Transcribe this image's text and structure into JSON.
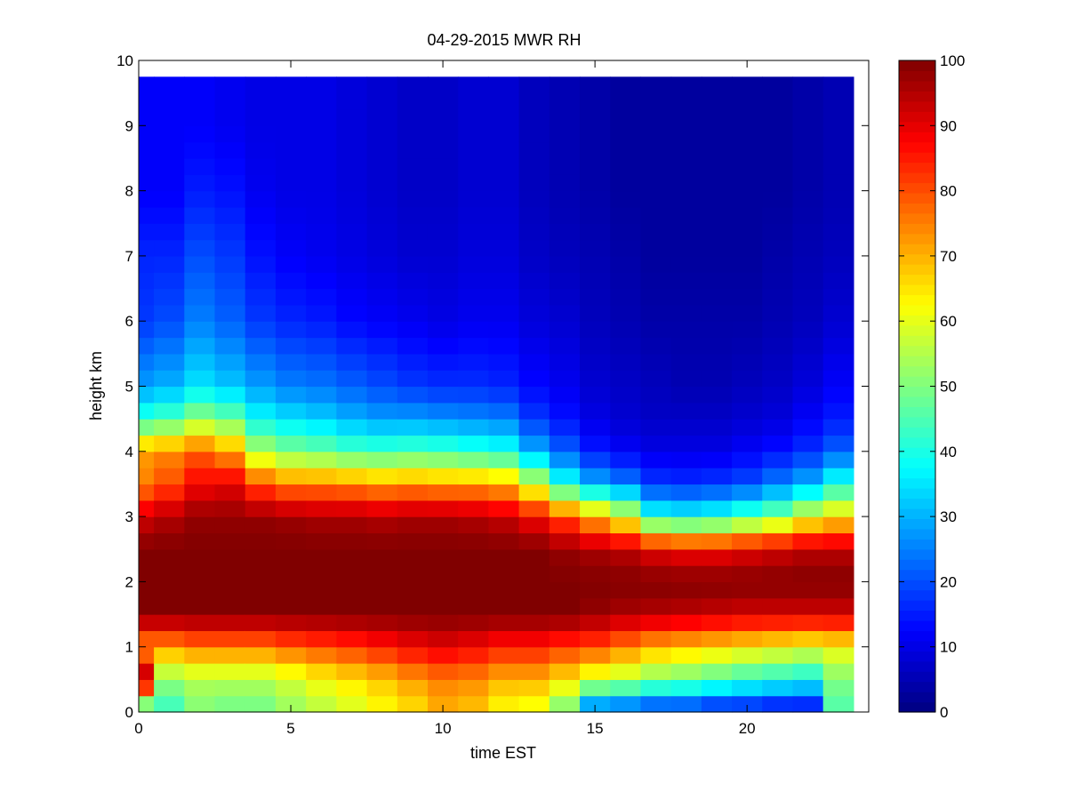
{
  "chart_data": {
    "type": "heatmap",
    "title": "04-29-2015 MWR RH",
    "xlabel": "time EST",
    "ylabel": "height km",
    "xlim": [
      0,
      24
    ],
    "ylim": [
      0,
      10
    ],
    "x_ticks": [
      0,
      5,
      10,
      15,
      20
    ],
    "y_ticks": [
      0,
      1,
      2,
      3,
      4,
      5,
      6,
      7,
      8,
      9,
      10
    ],
    "colorbar": {
      "colormap": "jet",
      "range": [
        0,
        100
      ],
      "ticks": [
        0,
        10,
        20,
        30,
        40,
        50,
        60,
        70,
        80,
        90,
        100
      ]
    },
    "time_hours": [
      0,
      1,
      2,
      3,
      4,
      5,
      6,
      7,
      8,
      9,
      10,
      11,
      12,
      13,
      14,
      15,
      16,
      17,
      18,
      19,
      20,
      21,
      22,
      23
    ],
    "height_km": [
      0.0,
      0.5,
      1.0,
      1.5,
      2.0,
      2.5,
      3.0,
      3.5,
      4.0,
      4.5,
      5.0,
      6.0,
      7.0,
      8.0,
      9.0,
      9.75
    ],
    "rh_percent": [
      [
        35,
        98,
        72,
        100,
        100,
        100,
        92,
        75,
        72,
        42,
        28,
        18,
        16,
        12,
        12,
        12
      ],
      [
        42,
        52,
        72,
        100,
        100,
        100,
        95,
        80,
        74,
        45,
        30,
        20,
        16,
        12,
        12,
        12
      ],
      [
        50,
        55,
        75,
        100,
        100,
        100,
        98,
        88,
        78,
        52,
        35,
        25,
        20,
        15,
        12,
        12
      ],
      [
        48,
        55,
        75,
        100,
        100,
        100,
        98,
        90,
        72,
        48,
        32,
        22,
        18,
        14,
        11,
        11
      ],
      [
        48,
        55,
        75,
        100,
        100,
        100,
        98,
        80,
        55,
        38,
        28,
        18,
        14,
        11,
        10,
        10
      ],
      [
        52,
        58,
        78,
        100,
        100,
        100,
        97,
        75,
        50,
        35,
        25,
        16,
        12,
        10,
        10,
        10
      ],
      [
        55,
        62,
        80,
        100,
        100,
        100,
        96,
        75,
        48,
        33,
        24,
        15,
        11,
        10,
        10,
        10
      ],
      [
        58,
        65,
        82,
        100,
        100,
        100,
        96,
        74,
        45,
        30,
        22,
        13,
        10,
        9,
        9,
        9
      ],
      [
        62,
        68,
        85,
        100,
        100,
        100,
        95,
        72,
        44,
        28,
        20,
        12,
        9,
        8,
        8,
        8
      ],
      [
        65,
        72,
        88,
        100,
        100,
        100,
        96,
        73,
        45,
        28,
        18,
        11,
        8,
        7,
        7,
        7
      ],
      [
        70,
        75,
        90,
        100,
        100,
        100,
        96,
        72,
        44,
        27,
        17,
        10,
        8,
        7,
        7,
        7
      ],
      [
        68,
        74,
        88,
        100,
        100,
        100,
        95,
        72,
        42,
        26,
        17,
        11,
        9,
        8,
        8,
        8
      ],
      [
        62,
        70,
        85,
        100,
        100,
        100,
        93,
        70,
        40,
        25,
        16,
        11,
        9,
        8,
        8,
        8
      ],
      [
        60,
        70,
        85,
        100,
        100,
        100,
        88,
        58,
        30,
        18,
        13,
        9,
        7,
        6,
        6,
        6
      ],
      [
        48,
        65,
        82,
        100,
        100,
        98,
        80,
        40,
        22,
        14,
        11,
        8,
        6,
        5,
        5,
        5
      ],
      [
        20,
        58,
        80,
        98,
        100,
        96,
        70,
        30,
        15,
        10,
        8,
        6,
        5,
        4,
        4,
        4
      ],
      [
        18,
        55,
        75,
        96,
        100,
        94,
        60,
        25,
        12,
        8,
        7,
        5,
        4,
        3,
        3,
        3
      ],
      [
        15,
        50,
        70,
        95,
        100,
        90,
        40,
        18,
        10,
        7,
        6,
        4,
        3,
        3,
        3,
        3
      ],
      [
        15,
        48,
        68,
        94,
        100,
        88,
        38,
        17,
        10,
        7,
        5,
        4,
        3,
        3,
        3,
        3
      ],
      [
        12,
        45,
        66,
        93,
        100,
        88,
        40,
        18,
        10,
        7,
        5,
        4,
        3,
        3,
        3,
        3
      ],
      [
        12,
        42,
        64,
        92,
        100,
        90,
        45,
        20,
        12,
        8,
        6,
        4,
        3,
        3,
        3,
        3
      ],
      [
        10,
        40,
        62,
        92,
        100,
        92,
        50,
        25,
        14,
        9,
        7,
        5,
        4,
        3,
        3,
        3
      ],
      [
        10,
        38,
        60,
        92,
        100,
        94,
        60,
        30,
        17,
        12,
        9,
        6,
        5,
        4,
        4,
        4
      ],
      [
        45,
        50,
        62,
        92,
        100,
        94,
        65,
        40,
        22,
        15,
        12,
        8,
        6,
        5,
        5,
        5
      ]
    ]
  }
}
